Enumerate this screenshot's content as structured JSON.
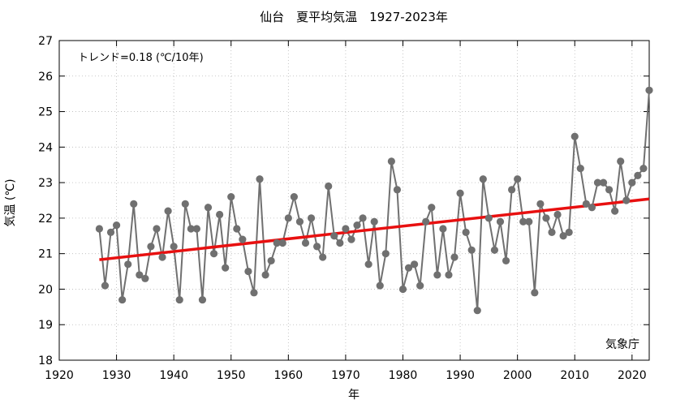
{
  "chart_data": {
    "type": "line",
    "title": "仙台　夏平均気温　1927-2023年",
    "xlabel": "年",
    "ylabel": "気温 (℃)",
    "trend_label": "トレンド=0.18 (℃/10年)",
    "source_label": "気象庁",
    "xlim": [
      1920,
      2023
    ],
    "ylim": [
      18,
      27
    ],
    "x_ticks": [
      1920,
      1930,
      1940,
      1950,
      1960,
      1970,
      1980,
      1990,
      2000,
      2010,
      2020
    ],
    "y_ticks": [
      18,
      19,
      20,
      21,
      22,
      23,
      24,
      25,
      26,
      27
    ],
    "grid": true,
    "series": [
      {
        "color": "#707070",
        "x": [
          1927,
          1928,
          1929,
          1930,
          1931,
          1932,
          1933,
          1934,
          1935,
          1936,
          1937,
          1938,
          1939,
          1940,
          1941,
          1942,
          1943,
          1944,
          1945,
          1946,
          1947,
          1948,
          1949,
          1950,
          1951,
          1952,
          1953,
          1954,
          1955,
          1956,
          1957,
          1958,
          1959,
          1960,
          1961,
          1962,
          1963,
          1964,
          1965,
          1966,
          1967,
          1968,
          1969,
          1970,
          1971,
          1972,
          1973,
          1974,
          1975,
          1976,
          1977,
          1978,
          1979,
          1980,
          1981,
          1982,
          1983,
          1984,
          1985,
          1986,
          1987,
          1988,
          1989,
          1990,
          1991,
          1992,
          1993,
          1994,
          1995,
          1996,
          1997,
          1998,
          1999,
          2000,
          2001,
          2002,
          2003,
          2004,
          2005,
          2006,
          2007,
          2008,
          2009,
          2010,
          2011,
          2012,
          2013,
          2014,
          2015,
          2016,
          2017,
          2018,
          2019,
          2020,
          2021,
          2022,
          2023
        ],
        "y": [
          21.7,
          20.1,
          21.6,
          21.8,
          19.7,
          20.7,
          22.4,
          20.4,
          20.3,
          21.2,
          21.7,
          20.9,
          22.2,
          21.2,
          19.7,
          22.4,
          21.7,
          21.7,
          19.7,
          22.3,
          21.0,
          22.1,
          20.6,
          22.6,
          21.7,
          21.4,
          20.5,
          19.9,
          23.1,
          20.4,
          20.8,
          21.3,
          21.3,
          22.0,
          22.6,
          21.9,
          21.3,
          22.0,
          21.2,
          20.9,
          22.9,
          21.5,
          21.3,
          21.7,
          21.4,
          21.8,
          22.0,
          20.7,
          21.9,
          20.1,
          21.0,
          23.6,
          22.8,
          20.0,
          20.6,
          20.7,
          20.1,
          21.9,
          22.3,
          20.4,
          21.7,
          20.4,
          20.9,
          22.7,
          21.6,
          21.1,
          19.4,
          23.1,
          22.0,
          21.1,
          21.9,
          20.8,
          22.8,
          23.1,
          21.9,
          21.9,
          19.9,
          22.4,
          22.0,
          21.6,
          22.1,
          21.5,
          21.6,
          24.3,
          23.4,
          22.4,
          22.3,
          23.0,
          23.0,
          22.8,
          22.2,
          23.6,
          22.5,
          23.0,
          23.2,
          23.4,
          25.6
        ]
      },
      {
        "type": "trend",
        "color": "#e81010",
        "x": [
          1927,
          2023
        ],
        "y": [
          20.83,
          22.54
        ]
      }
    ]
  }
}
